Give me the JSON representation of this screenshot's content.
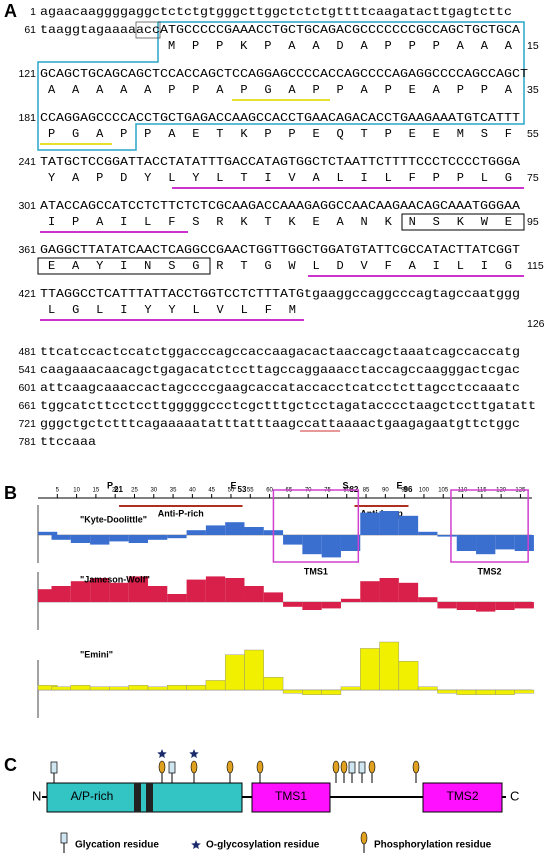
{
  "panel_a": {
    "label": "A",
    "nucleotide_lines": [
      {
        "number": 1,
        "sequence": "agaacaaggggaggctctctgtgggcttggctctctgttttcaagatacttgagtcttc"
      },
      {
        "number": 61,
        "sequence": "taaggtagaaaaaccATGCCCCCGAAACCTGCTGCAGACGCCCCCCCGCCAGCTGCTGCA"
      },
      {
        "number": 121,
        "sequence": "GCAGCTGCAGCAGCTCCACCAGCTCCAGGAGCCCCACCAGCCCCAGAGGCCCCAGCCAGCT"
      },
      {
        "number": 181,
        "sequence": "CCAGGAGCCCCACCTGCTGAGACCAAGCCACCTGAACAGACACCTGAAGAAATGTCATTT"
      },
      {
        "number": 241,
        "sequence": "TATGCTCCGGATTACCTATATTTGACCATAGTGGCTCTAATTCTTTTCCCTCCCCTGGGA"
      },
      {
        "number": 301,
        "sequence": "ATACCAGCCATCCTCTTCTCTCGCAAGACCAAAGAGGCCAACAAGAACAGCAAATGGGAA"
      },
      {
        "number": 361,
        "sequence": "GAGGCTTATATCAACTCAGGCCGAACTGGTTGGCTGGATGTATTCGCCATACTTATCGGT"
      },
      {
        "number": 421,
        "sequence": "TTAGGCCTCATTTATTACCTGGTCCTCTTTATGtgaaggccaggcccagtagccaatggg"
      },
      {
        "number": 481,
        "sequence": "ttcatccactccatctggacccagccaccaagacactaaccagctaaatcagccaccatg"
      },
      {
        "number": 541,
        "sequence": "caagaaacaacagctgagacatctccttagccaggaaacctaccagccaagggactcgac"
      },
      {
        "number": 601,
        "sequence": "attcaagcaaaccactagccccgaagcaccataccacctcatcctcttagcctccaaatc"
      },
      {
        "number": 661,
        "sequence": "tggcatcttcctccttgggggccctcgctttgctcctagatacccctaagctccttgatatt"
      },
      {
        "number": 721,
        "sequence": "gggctgctctttcagaaaaatatttatttaagccattaaaactgaagagaatgttctggc"
      },
      {
        "number": 781,
        "sequence": "ttccaaa"
      }
    ],
    "protein_lines": [
      {
        "sequence": "MPPKPAADAPPPAAA",
        "end": 15
      },
      {
        "sequence": "AAAAAPPAPGAPPAPEAPPA",
        "end": 35
      },
      {
        "sequence": "PGAPPAETKPPEQTPEEMSF",
        "end": 55
      },
      {
        "sequence": "YAPDYLYLTIVALILFPPLG",
        "end": 75
      },
      {
        "sequence": "IPAILFSRKTKEANKNSKWE",
        "end": 95
      },
      {
        "sequence": "EAYINSGRTGWLDVFAILIG",
        "end": 115
      },
      {
        "sequence": "LGLIYYLVLFM",
        "end": 126
      }
    ]
  },
  "panel_b": {
    "label": "B",
    "xlim": [
      0,
      128
    ],
    "xticks": [
      5,
      10,
      15,
      20,
      25,
      30,
      35,
      40,
      45,
      50,
      55,
      60,
      65,
      70,
      75,
      80,
      85,
      90,
      95,
      100,
      105,
      110,
      115,
      120,
      125
    ],
    "sites": [
      {
        "residue": "P",
        "position": 21
      },
      {
        "residue": "E",
        "position": 53
      },
      {
        "residue": "S",
        "position": 82
      },
      {
        "residue": "E",
        "position": 96
      }
    ],
    "antibodies": [
      "Anti-P-rich",
      "Anti-Loop"
    ],
    "regions": [
      "TMS1",
      "TMS2"
    ],
    "x": [
      1,
      6,
      11,
      16,
      21,
      26,
      31,
      36,
      41,
      46,
      51,
      56,
      61,
      66,
      71,
      76,
      81,
      86,
      91,
      96,
      101,
      106,
      111,
      116,
      121,
      126
    ],
    "series": [
      {
        "name": "\"Kyte-Doolittle\"",
        "color": "#3a6fd0",
        "values": [
          0.2,
          -0.3,
          -0.5,
          -0.6,
          -0.4,
          -0.5,
          -0.3,
          -0.2,
          0.3,
          0.6,
          0.8,
          0.5,
          0.3,
          -0.6,
          -1.2,
          -1.4,
          -1.0,
          1.4,
          1.5,
          1.2,
          0.2,
          -0.1,
          -1.0,
          -1.2,
          -0.9,
          -1.0
        ]
      },
      {
        "name": "\"Jameson-Wolf\"",
        "color": "#d8204a",
        "values": [
          0.8,
          1.0,
          1.3,
          1.5,
          1.2,
          1.6,
          1.0,
          0.5,
          1.4,
          1.6,
          1.5,
          1.0,
          0.6,
          -0.3,
          -0.5,
          -0.4,
          0.2,
          1.3,
          1.5,
          1.2,
          0.3,
          -0.4,
          -0.5,
          -0.6,
          -0.5,
          -0.4
        ]
      },
      {
        "name": "\"Emini\"",
        "color": "#f0f000",
        "values": [
          0.3,
          0.2,
          0.3,
          0.2,
          0.2,
          0.3,
          0.2,
          0.3,
          0.3,
          0.6,
          2.2,
          2.5,
          0.8,
          -0.2,
          -0.3,
          -0.3,
          0.2,
          2.6,
          3.0,
          1.8,
          0.2,
          -0.2,
          -0.3,
          -0.3,
          -0.3,
          -0.2
        ]
      }
    ]
  },
  "panel_c": {
    "label": "C",
    "n_terminus": "N",
    "c_terminus": "C",
    "domains": [
      "A/P-rich",
      "TMS1",
      "TMS2"
    ],
    "legend": [
      "Glycation residue",
      "O-glycosylation residue",
      "Phosphorylation residue"
    ]
  }
}
